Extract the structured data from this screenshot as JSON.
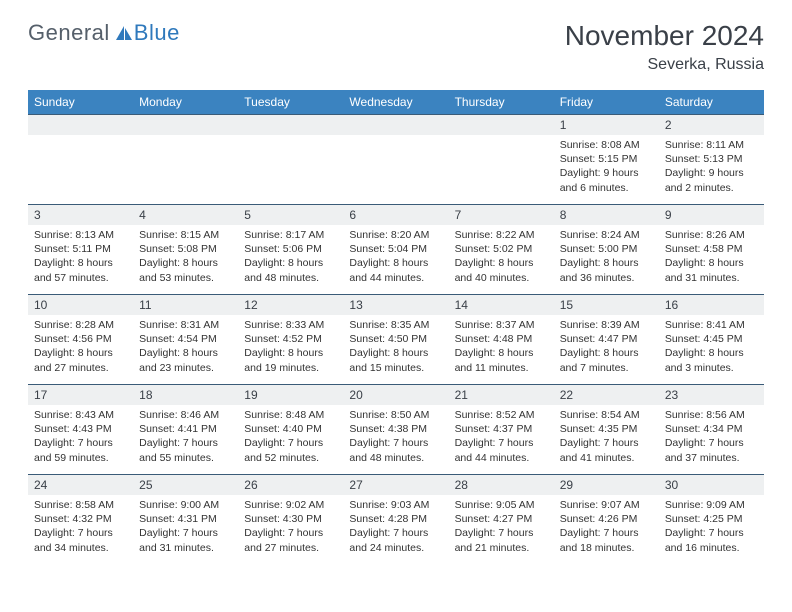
{
  "logo": {
    "text1": "General",
    "text2": "Blue"
  },
  "title": "November 2024",
  "subtitle": "Severka, Russia",
  "colors": {
    "header_bg": "#3b83c0",
    "header_text": "#ffffff",
    "daynum_bg": "#eef0f1",
    "border": "#3a5b78",
    "text": "#333333"
  },
  "dayNames": [
    "Sunday",
    "Monday",
    "Tuesday",
    "Wednesday",
    "Thursday",
    "Friday",
    "Saturday"
  ],
  "weeks": [
    {
      "nums": [
        "",
        "",
        "",
        "",
        "",
        "1",
        "2"
      ],
      "cells": [
        null,
        null,
        null,
        null,
        null,
        {
          "sr": "8:08 AM",
          "ss": "5:15 PM",
          "dl": "9 hours and 6 minutes."
        },
        {
          "sr": "8:11 AM",
          "ss": "5:13 PM",
          "dl": "9 hours and 2 minutes."
        }
      ]
    },
    {
      "nums": [
        "3",
        "4",
        "5",
        "6",
        "7",
        "8",
        "9"
      ],
      "cells": [
        {
          "sr": "8:13 AM",
          "ss": "5:11 PM",
          "dl": "8 hours and 57 minutes."
        },
        {
          "sr": "8:15 AM",
          "ss": "5:08 PM",
          "dl": "8 hours and 53 minutes."
        },
        {
          "sr": "8:17 AM",
          "ss": "5:06 PM",
          "dl": "8 hours and 48 minutes."
        },
        {
          "sr": "8:20 AM",
          "ss": "5:04 PM",
          "dl": "8 hours and 44 minutes."
        },
        {
          "sr": "8:22 AM",
          "ss": "5:02 PM",
          "dl": "8 hours and 40 minutes."
        },
        {
          "sr": "8:24 AM",
          "ss": "5:00 PM",
          "dl": "8 hours and 36 minutes."
        },
        {
          "sr": "8:26 AM",
          "ss": "4:58 PM",
          "dl": "8 hours and 31 minutes."
        }
      ]
    },
    {
      "nums": [
        "10",
        "11",
        "12",
        "13",
        "14",
        "15",
        "16"
      ],
      "cells": [
        {
          "sr": "8:28 AM",
          "ss": "4:56 PM",
          "dl": "8 hours and 27 minutes."
        },
        {
          "sr": "8:31 AM",
          "ss": "4:54 PM",
          "dl": "8 hours and 23 minutes."
        },
        {
          "sr": "8:33 AM",
          "ss": "4:52 PM",
          "dl": "8 hours and 19 minutes."
        },
        {
          "sr": "8:35 AM",
          "ss": "4:50 PM",
          "dl": "8 hours and 15 minutes."
        },
        {
          "sr": "8:37 AM",
          "ss": "4:48 PM",
          "dl": "8 hours and 11 minutes."
        },
        {
          "sr": "8:39 AM",
          "ss": "4:47 PM",
          "dl": "8 hours and 7 minutes."
        },
        {
          "sr": "8:41 AM",
          "ss": "4:45 PM",
          "dl": "8 hours and 3 minutes."
        }
      ]
    },
    {
      "nums": [
        "17",
        "18",
        "19",
        "20",
        "21",
        "22",
        "23"
      ],
      "cells": [
        {
          "sr": "8:43 AM",
          "ss": "4:43 PM",
          "dl": "7 hours and 59 minutes."
        },
        {
          "sr": "8:46 AM",
          "ss": "4:41 PM",
          "dl": "7 hours and 55 minutes."
        },
        {
          "sr": "8:48 AM",
          "ss": "4:40 PM",
          "dl": "7 hours and 52 minutes."
        },
        {
          "sr": "8:50 AM",
          "ss": "4:38 PM",
          "dl": "7 hours and 48 minutes."
        },
        {
          "sr": "8:52 AM",
          "ss": "4:37 PM",
          "dl": "7 hours and 44 minutes."
        },
        {
          "sr": "8:54 AM",
          "ss": "4:35 PM",
          "dl": "7 hours and 41 minutes."
        },
        {
          "sr": "8:56 AM",
          "ss": "4:34 PM",
          "dl": "7 hours and 37 minutes."
        }
      ]
    },
    {
      "nums": [
        "24",
        "25",
        "26",
        "27",
        "28",
        "29",
        "30"
      ],
      "cells": [
        {
          "sr": "8:58 AM",
          "ss": "4:32 PM",
          "dl": "7 hours and 34 minutes."
        },
        {
          "sr": "9:00 AM",
          "ss": "4:31 PM",
          "dl": "7 hours and 31 minutes."
        },
        {
          "sr": "9:02 AM",
          "ss": "4:30 PM",
          "dl": "7 hours and 27 minutes."
        },
        {
          "sr": "9:03 AM",
          "ss": "4:28 PM",
          "dl": "7 hours and 24 minutes."
        },
        {
          "sr": "9:05 AM",
          "ss": "4:27 PM",
          "dl": "7 hours and 21 minutes."
        },
        {
          "sr": "9:07 AM",
          "ss": "4:26 PM",
          "dl": "7 hours and 18 minutes."
        },
        {
          "sr": "9:09 AM",
          "ss": "4:25 PM",
          "dl": "7 hours and 16 minutes."
        }
      ]
    }
  ],
  "labels": {
    "sunrise": "Sunrise: ",
    "sunset": "Sunset: ",
    "daylight": "Daylight: "
  }
}
